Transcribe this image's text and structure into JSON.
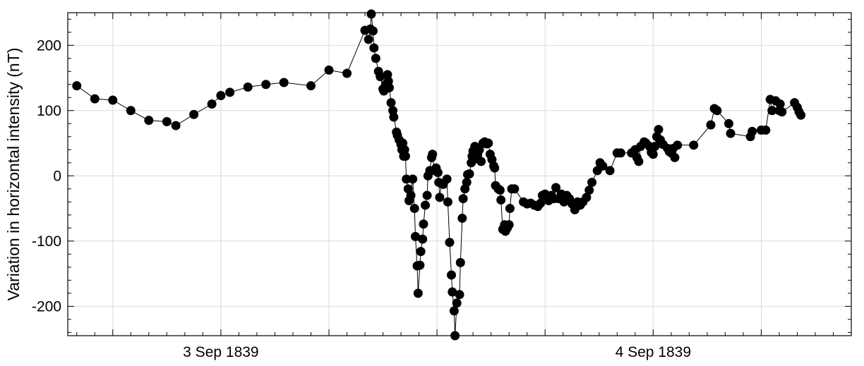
{
  "chart_data": {
    "type": "scatter",
    "title": "",
    "xlabel": "",
    "ylabel": "Variation in horizontal intensity (nT)",
    "x_unit": "hours from 1839-09-02 00:00",
    "xlim": [
      15.5,
      59.0
    ],
    "ylim": [
      -245,
      250
    ],
    "y_ticks": [
      -200,
      -100,
      0,
      100,
      200
    ],
    "x_major_ticks": [
      {
        "x": 24,
        "label": "3 Sep 1839"
      },
      {
        "x": 48,
        "label": "4 Sep 1839"
      }
    ],
    "x_unlabeled_gridlines": [
      18,
      30,
      36,
      42,
      54
    ],
    "grid": true,
    "legend": "none",
    "marker": "filled-circle",
    "line": "connected",
    "series": [
      {
        "points": [
          [
            16.0,
            138
          ],
          [
            17.0,
            118
          ],
          [
            18.0,
            116
          ],
          [
            19.0,
            100
          ],
          [
            20.0,
            85
          ],
          [
            21.0,
            83
          ],
          [
            21.5,
            77
          ],
          [
            22.5,
            94
          ],
          [
            23.5,
            110
          ],
          [
            24.0,
            123
          ],
          [
            24.5,
            128
          ],
          [
            25.5,
            136
          ],
          [
            26.5,
            140
          ],
          [
            27.5,
            143
          ],
          [
            29.0,
            138
          ],
          [
            30.0,
            162
          ],
          [
            31.0,
            157
          ],
          [
            32.0,
            223
          ],
          [
            32.2,
            209
          ],
          [
            32.3,
            225
          ],
          [
            32.35,
            248
          ],
          [
            32.45,
            222
          ],
          [
            32.5,
            196
          ],
          [
            32.6,
            180
          ],
          [
            32.75,
            160
          ],
          [
            32.85,
            152
          ],
          [
            33.0,
            133
          ],
          [
            33.05,
            130
          ],
          [
            33.15,
            140
          ],
          [
            33.25,
            155
          ],
          [
            33.3,
            145
          ],
          [
            33.35,
            135
          ],
          [
            33.45,
            112
          ],
          [
            33.55,
            100
          ],
          [
            33.6,
            90
          ],
          [
            33.75,
            67
          ],
          [
            33.8,
            62
          ],
          [
            33.9,
            55
          ],
          [
            34.0,
            48
          ],
          [
            34.05,
            40
          ],
          [
            34.1,
            50
          ],
          [
            34.15,
            30
          ],
          [
            34.2,
            40
          ],
          [
            34.25,
            30
          ],
          [
            34.3,
            -5
          ],
          [
            34.4,
            -20
          ],
          [
            34.45,
            -38
          ],
          [
            34.55,
            -30
          ],
          [
            34.65,
            -5
          ],
          [
            34.75,
            -50
          ],
          [
            34.8,
            -93
          ],
          [
            34.9,
            -138
          ],
          [
            34.95,
            -180
          ],
          [
            35.05,
            -137
          ],
          [
            35.1,
            -116
          ],
          [
            35.2,
            -97
          ],
          [
            35.25,
            -74
          ],
          [
            35.35,
            -45
          ],
          [
            35.45,
            -30
          ],
          [
            35.5,
            0
          ],
          [
            35.6,
            8
          ],
          [
            35.7,
            28
          ],
          [
            35.75,
            33
          ],
          [
            35.85,
            8
          ],
          [
            35.95,
            12
          ],
          [
            36.05,
            5
          ],
          [
            36.1,
            -10
          ],
          [
            36.15,
            -33
          ],
          [
            36.25,
            -12
          ],
          [
            36.35,
            -13
          ],
          [
            36.55,
            -5
          ],
          [
            36.6,
            -40
          ],
          [
            36.7,
            -102
          ],
          [
            36.8,
            -152
          ],
          [
            36.85,
            -178
          ],
          [
            36.95,
            -207
          ],
          [
            37.0,
            -245
          ],
          [
            37.1,
            -195
          ],
          [
            37.25,
            -182
          ],
          [
            37.3,
            -133
          ],
          [
            37.4,
            -65
          ],
          [
            37.45,
            -35
          ],
          [
            37.55,
            -20
          ],
          [
            37.65,
            -10
          ],
          [
            37.7,
            2
          ],
          [
            37.8,
            3
          ],
          [
            37.9,
            20
          ],
          [
            37.95,
            30
          ],
          [
            38.0,
            38
          ],
          [
            38.05,
            25
          ],
          [
            38.1,
            45
          ],
          [
            38.2,
            30
          ],
          [
            38.25,
            35
          ],
          [
            38.35,
            40
          ],
          [
            38.45,
            22
          ],
          [
            38.55,
            50
          ],
          [
            38.65,
            52
          ],
          [
            38.75,
            49
          ],
          [
            38.85,
            50
          ],
          [
            38.95,
            33
          ],
          [
            39.05,
            25
          ],
          [
            39.15,
            15
          ],
          [
            39.2,
            12
          ],
          [
            39.25,
            -15
          ],
          [
            39.4,
            -20
          ],
          [
            39.5,
            -22
          ],
          [
            39.55,
            -37
          ],
          [
            39.65,
            -82
          ],
          [
            39.75,
            -75
          ],
          [
            39.8,
            -85
          ],
          [
            39.9,
            -80
          ],
          [
            40.0,
            -75
          ],
          [
            40.05,
            -50
          ],
          [
            40.15,
            -20
          ],
          [
            40.3,
            -20
          ],
          [
            40.8,
            -40
          ],
          [
            41.0,
            -43
          ],
          [
            41.2,
            -42
          ],
          [
            41.4,
            -45
          ],
          [
            41.6,
            -47
          ],
          [
            41.75,
            -42
          ],
          [
            41.85,
            -30
          ],
          [
            42.0,
            -28
          ],
          [
            42.2,
            -38
          ],
          [
            42.35,
            -30
          ],
          [
            42.5,
            -35
          ],
          [
            42.6,
            -18
          ],
          [
            42.75,
            -35
          ],
          [
            42.9,
            -28
          ],
          [
            43.05,
            -40
          ],
          [
            43.2,
            -30
          ],
          [
            43.35,
            -35
          ],
          [
            43.5,
            -43
          ],
          [
            43.65,
            -52
          ],
          [
            43.8,
            -40
          ],
          [
            43.95,
            -45
          ],
          [
            44.1,
            -40
          ],
          [
            44.3,
            -33
          ],
          [
            44.45,
            -22
          ],
          [
            44.6,
            -10
          ],
          [
            44.9,
            8
          ],
          [
            45.05,
            20
          ],
          [
            45.2,
            15
          ],
          [
            45.6,
            8
          ],
          [
            46.0,
            35
          ],
          [
            46.2,
            35
          ],
          [
            46.8,
            35
          ],
          [
            47.0,
            40
          ],
          [
            47.1,
            28
          ],
          [
            47.2,
            22
          ],
          [
            47.3,
            45
          ],
          [
            47.5,
            52
          ],
          [
            47.6,
            50
          ],
          [
            47.8,
            45
          ],
          [
            47.9,
            36
          ],
          [
            48.0,
            33
          ],
          [
            48.1,
            45
          ],
          [
            48.2,
            60
          ],
          [
            48.3,
            71
          ],
          [
            48.4,
            55
          ],
          [
            48.55,
            48
          ],
          [
            48.8,
            42
          ],
          [
            48.9,
            37
          ],
          [
            49.0,
            35
          ],
          [
            49.1,
            42
          ],
          [
            49.2,
            28
          ],
          [
            49.35,
            47
          ],
          [
            50.25,
            47
          ],
          [
            51.2,
            78
          ],
          [
            51.4,
            103
          ],
          [
            51.55,
            100
          ],
          [
            52.2,
            80
          ],
          [
            52.3,
            65
          ],
          [
            53.4,
            60
          ],
          [
            53.5,
            68
          ],
          [
            54.0,
            70
          ],
          [
            54.25,
            70
          ],
          [
            54.5,
            117
          ],
          [
            54.6,
            100
          ],
          [
            54.8,
            115
          ],
          [
            55.0,
            100
          ],
          [
            55.05,
            110
          ],
          [
            55.15,
            98
          ],
          [
            55.85,
            112
          ],
          [
            56.0,
            105
          ],
          [
            56.1,
            98
          ],
          [
            56.2,
            93
          ]
        ]
      }
    ]
  }
}
